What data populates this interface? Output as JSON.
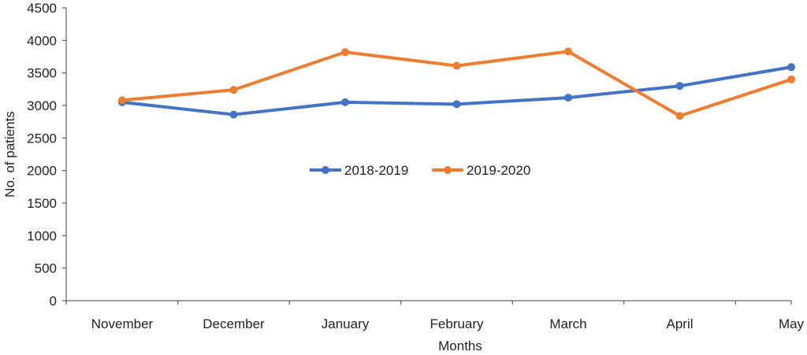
{
  "chart_data": {
    "type": "line",
    "title": "",
    "xlabel": "Months",
    "ylabel": "No. of patients",
    "categories": [
      "November",
      "December",
      "January",
      "February",
      "March",
      "April",
      "May"
    ],
    "ylim": [
      0,
      4500
    ],
    "yticks": [
      0,
      500,
      1000,
      1500,
      2000,
      2500,
      3000,
      3500,
      4000,
      4500
    ],
    "grid": false,
    "legend_position": "center",
    "series": [
      {
        "name": "2018-2019",
        "color": "#4472C4",
        "values": [
          3050,
          2860,
          3050,
          3020,
          3120,
          3300,
          3590
        ]
      },
      {
        "name": "2019-2020",
        "color": "#ED7D31",
        "values": [
          3080,
          3240,
          3820,
          3610,
          3830,
          2840,
          3400
        ]
      }
    ]
  }
}
